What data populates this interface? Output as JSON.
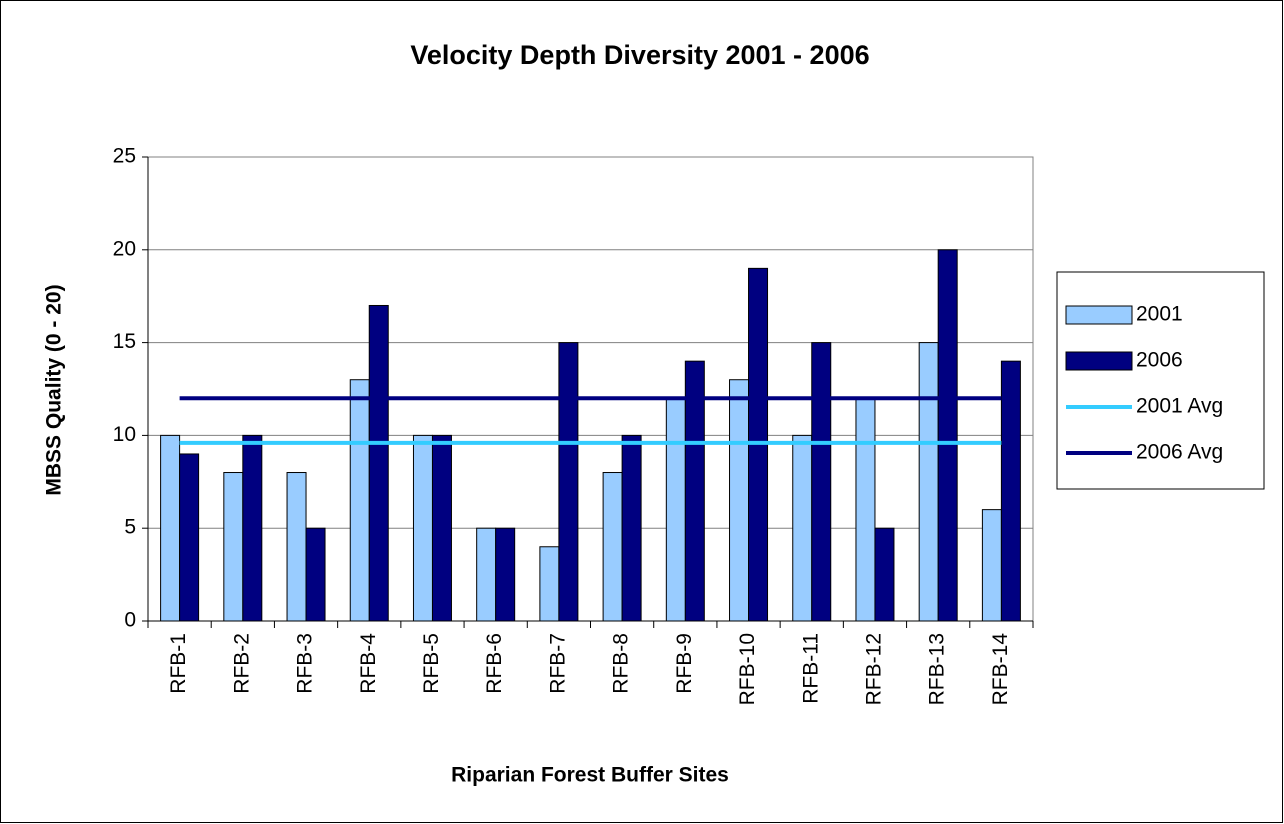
{
  "chart_data": {
    "type": "bar",
    "title": "Velocity Depth Diversity 2001 - 2006",
    "x_label": "Riparian Forest Buffer Sites",
    "y_label": "MBSS Quality (0 - 20)",
    "categories": [
      "RFB-1",
      "RFB-2",
      "RFB-3",
      "RFB-4",
      "RFB-5",
      "RFB-6",
      "RFB-7",
      "RFB-8",
      "RFB-9",
      "RFB-10",
      "RFB-11",
      "RFB-12",
      "RFB-13",
      "RFB-14"
    ],
    "series": [
      {
        "name": "2001",
        "type": "bar",
        "color": "#99ccff",
        "values": [
          10,
          8,
          8,
          13,
          10,
          5,
          4,
          8,
          12,
          13,
          10,
          12,
          15,
          6
        ]
      },
      {
        "name": "2006",
        "type": "bar",
        "color": "#000080",
        "values": [
          9,
          10,
          5,
          17,
          10,
          5,
          15,
          10,
          14,
          19,
          15,
          5,
          20,
          14
        ]
      },
      {
        "name": "2001 Avg",
        "type": "line",
        "color": "#33ccff",
        "values": [
          9.6,
          9.6,
          9.6,
          9.6,
          9.6,
          9.6,
          9.6,
          9.6,
          9.6,
          9.6,
          9.6,
          9.6,
          9.6,
          9.6
        ]
      },
      {
        "name": "2006 Avg",
        "type": "line",
        "color": "#000080",
        "values": [
          12,
          12,
          12,
          12,
          12,
          12,
          12,
          12,
          12,
          12,
          12,
          12,
          12,
          12
        ]
      }
    ],
    "ylim": [
      0,
      25
    ],
    "yticks": [
      0,
      5,
      10,
      15,
      20,
      25
    ],
    "grid": true,
    "legend": "right"
  }
}
